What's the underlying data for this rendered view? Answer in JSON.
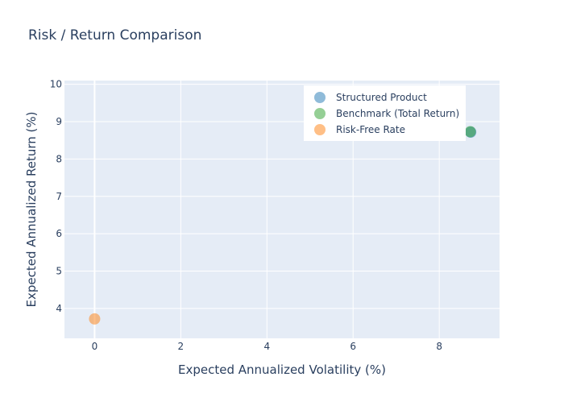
{
  "chart_data": {
    "type": "scatter",
    "title": "Risk / Return Comparison",
    "xlabel": "Expected Annualized Volatility (%)",
    "ylabel": "Expected Annualized Return (%)",
    "xlim": [
      -0.7,
      9.4
    ],
    "ylim": [
      3.2,
      10.1
    ],
    "x_ticks": [
      0,
      2,
      4,
      6,
      8
    ],
    "y_ticks": [
      4,
      5,
      6,
      7,
      8,
      9,
      10
    ],
    "grid": true,
    "legend_position": "top-right",
    "series": [
      {
        "name": "Structured Product",
        "color": "#1f77b4",
        "points": [
          {
            "x": 8.73,
            "y": 8.72
          }
        ]
      },
      {
        "name": "Benchmark (Total Return)",
        "color": "#2ca02c",
        "points": [
          {
            "x": 8.72,
            "y": 8.73
          }
        ]
      },
      {
        "name": "Risk-Free Rate",
        "color": "#ff7f0e",
        "points": [
          {
            "x": 0.0,
            "y": 3.72
          }
        ]
      }
    ]
  }
}
